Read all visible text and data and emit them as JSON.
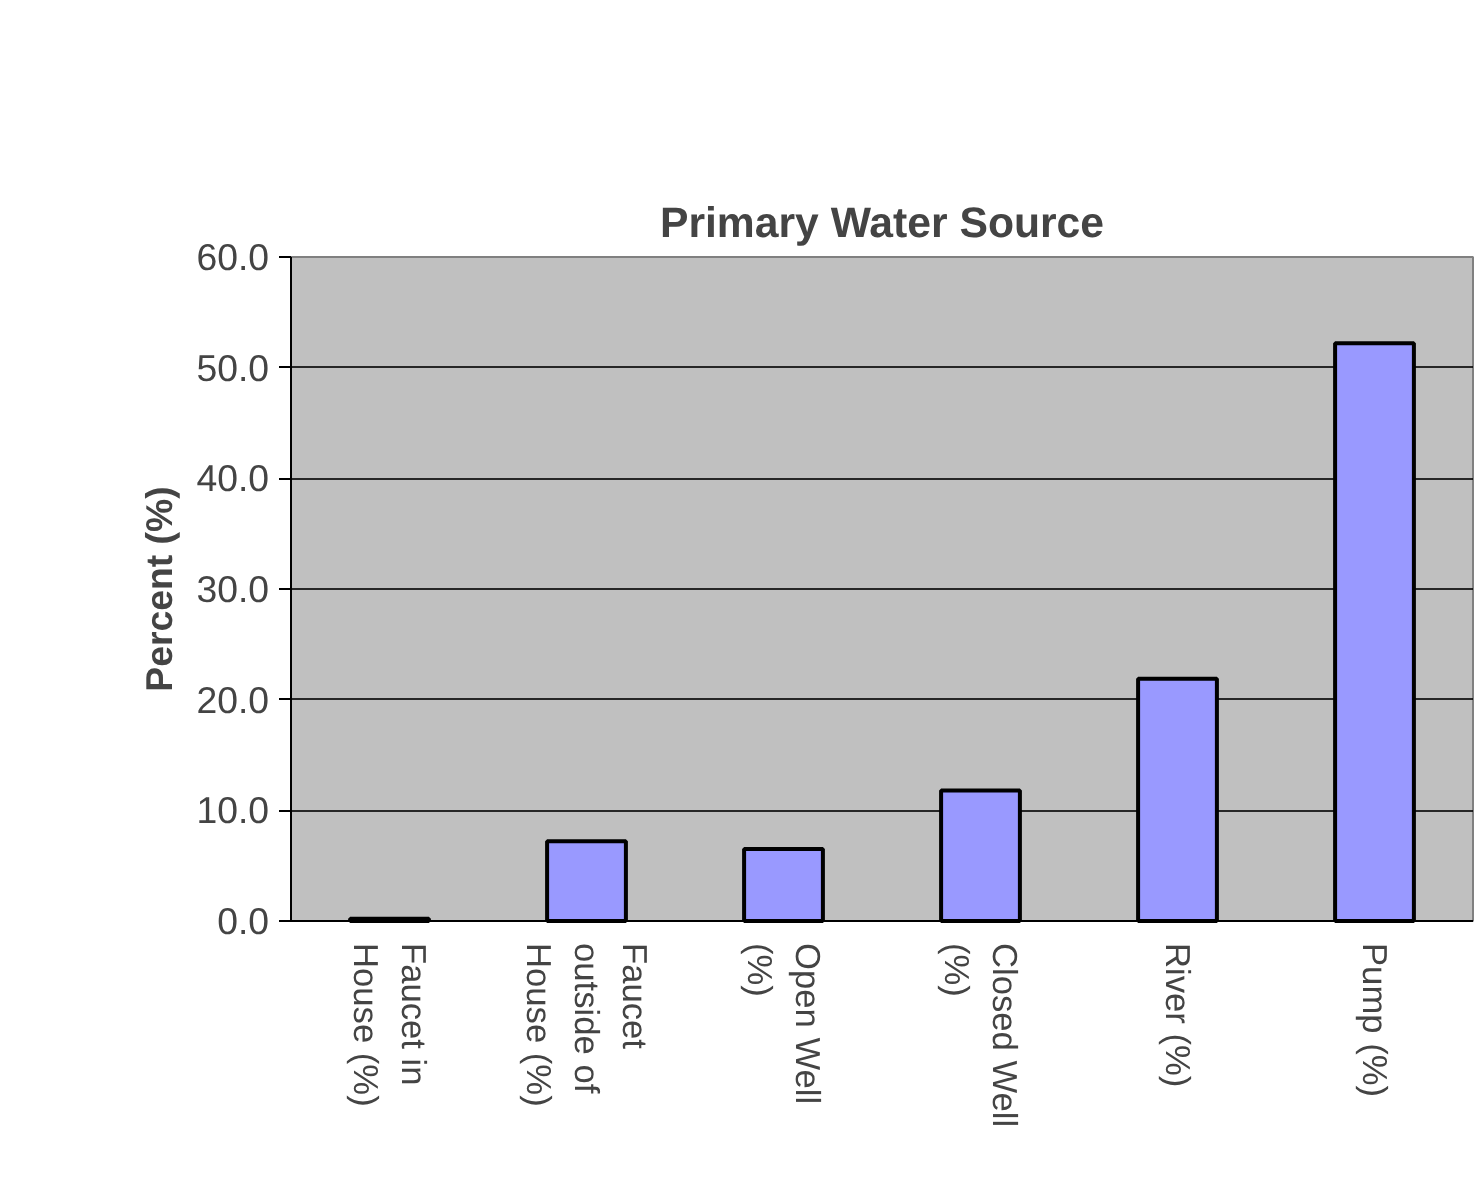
{
  "chart_data": {
    "type": "bar",
    "title": "Primary Water Source",
    "ylabel": "Percent (%)",
    "categories": [
      "Faucet in House (%)",
      "Faucet outside of House (%)",
      "Open Well (%)",
      "Closed Well (%)",
      "River (%)",
      "Pump (%)"
    ],
    "values": [
      0.2,
      7.2,
      6.5,
      11.8,
      21.9,
      52.2
    ],
    "color": "#9999ff",
    "ylim": [
      0,
      60
    ],
    "yticks": [
      {
        "value": 0,
        "label": "0.0"
      },
      {
        "value": 10,
        "label": "10.0"
      },
      {
        "value": 20,
        "label": "20.0"
      },
      {
        "value": 30,
        "label": "30.0"
      },
      {
        "value": 40,
        "label": "40.0"
      },
      {
        "value": 50,
        "label": "50.0"
      },
      {
        "value": 60,
        "label": "60.0"
      }
    ],
    "grid": "y"
  }
}
